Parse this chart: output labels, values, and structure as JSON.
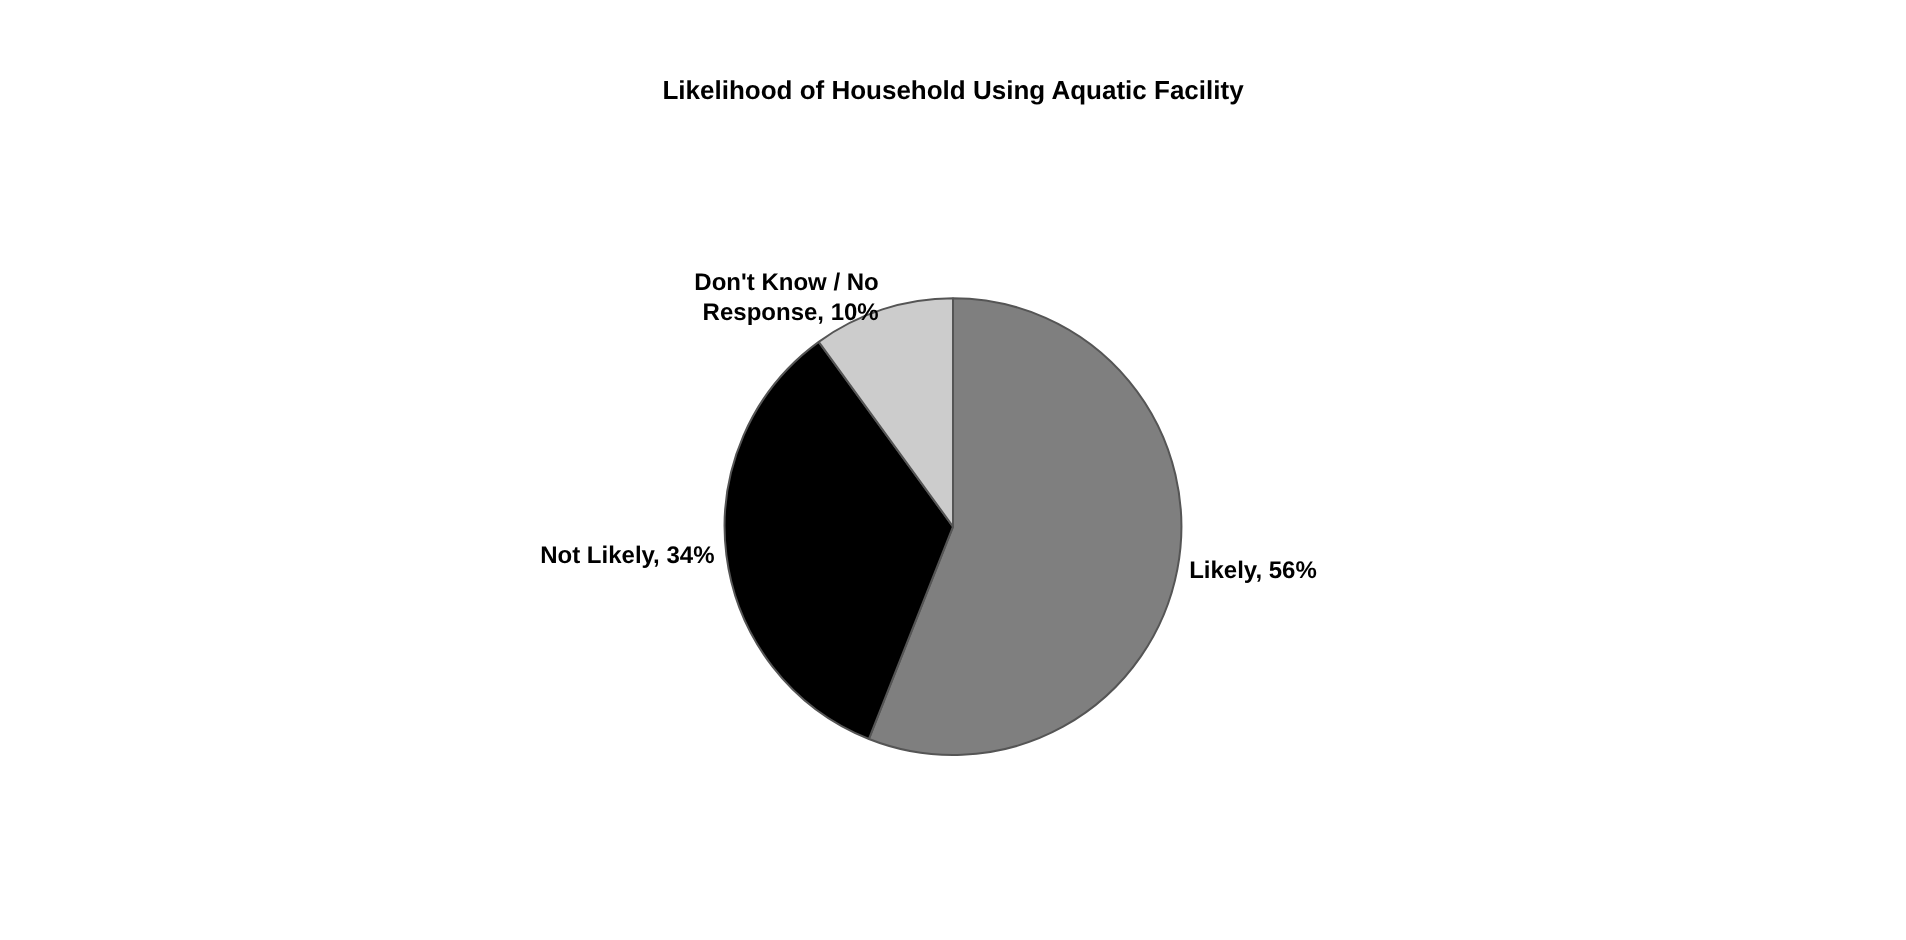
{
  "chart_data": {
    "type": "pie",
    "title": "Likelihood of Household Using Aquatic Facility",
    "categories": [
      "Likely",
      "Not Likely",
      "Don't Know / No Response"
    ],
    "values": [
      56,
      34,
      10
    ],
    "colors": [
      "#7f7f7f",
      "#000000",
      "#cccccc"
    ],
    "value_labels": [
      "56%",
      "34%",
      "10%"
    ]
  }
}
